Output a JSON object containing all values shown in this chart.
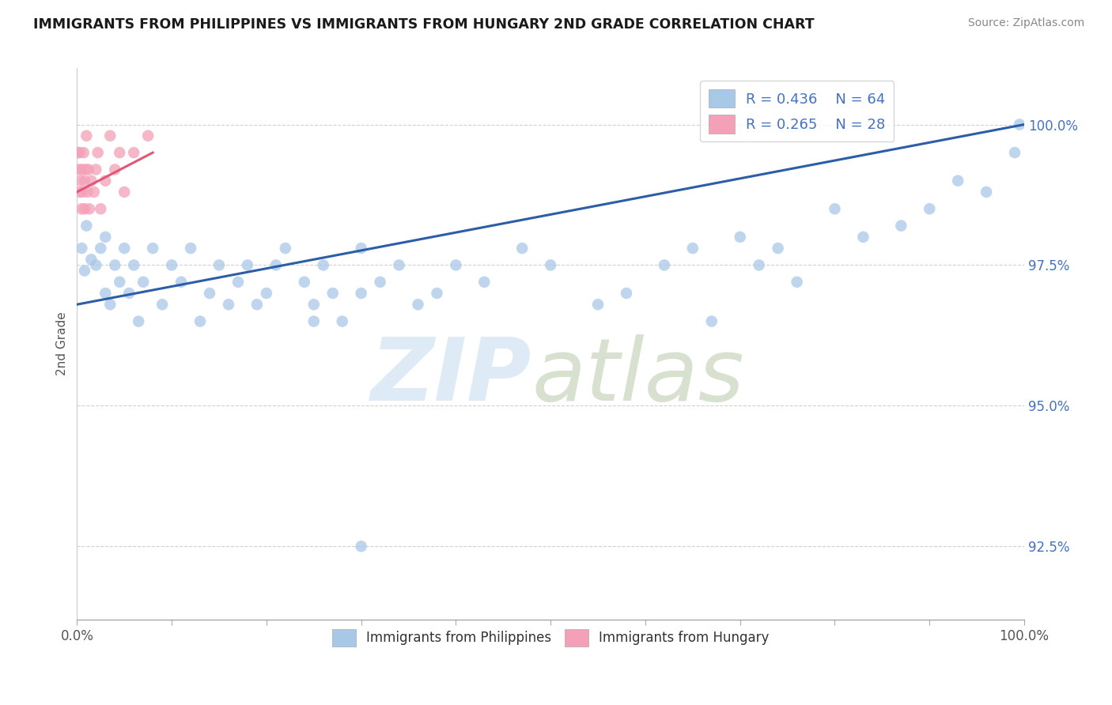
{
  "title": "IMMIGRANTS FROM PHILIPPINES VS IMMIGRANTS FROM HUNGARY 2ND GRADE CORRELATION CHART",
  "source": "Source: ZipAtlas.com",
  "ylabel": "2nd Grade",
  "yticks": [
    92.5,
    95.0,
    97.5,
    100.0
  ],
  "ytick_labels": [
    "92.5%",
    "95.0%",
    "97.5%",
    "100.0%"
  ],
  "xlim": [
    0.0,
    100.0
  ],
  "ylim": [
    91.2,
    101.0
  ],
  "legend_blue_label": "R = 0.436    N = 64",
  "legend_pink_label": "R = 0.265    N = 28",
  "blue_color": "#A8C8E8",
  "pink_color": "#F4A0B8",
  "blue_line_color": "#2B5EA7",
  "pink_line_color": "#E05878",
  "phil_x": [
    0.5,
    0.8,
    1.0,
    1.5,
    2.0,
    2.5,
    3.0,
    3.0,
    3.5,
    4.0,
    4.5,
    5.0,
    5.5,
    6.0,
    6.5,
    7.0,
    8.0,
    9.0,
    10.0,
    11.0,
    12.0,
    13.0,
    14.0,
    15.0,
    16.0,
    17.0,
    18.0,
    19.0,
    20.0,
    21.0,
    22.0,
    24.0,
    25.0,
    26.0,
    27.0,
    28.0,
    30.0,
    30.0,
    32.0,
    34.0,
    36.0,
    38.0,
    40.0,
    43.0,
    25.0,
    47.0,
    50.0,
    55.0,
    58.0,
    62.0,
    65.0,
    67.0,
    70.0,
    72.0,
    74.0,
    76.0,
    80.0,
    83.0,
    87.0,
    90.0,
    93.0,
    96.0,
    99.0,
    99.5
  ],
  "phil_y": [
    97.8,
    97.4,
    98.2,
    97.6,
    97.5,
    97.8,
    97.0,
    98.0,
    96.8,
    97.5,
    97.2,
    97.8,
    97.0,
    97.5,
    96.5,
    97.2,
    97.8,
    96.8,
    97.5,
    97.2,
    97.8,
    96.5,
    97.0,
    97.5,
    96.8,
    97.2,
    97.5,
    96.8,
    97.0,
    97.5,
    97.8,
    97.2,
    96.8,
    97.5,
    97.0,
    96.5,
    97.8,
    97.0,
    97.2,
    97.5,
    96.8,
    97.0,
    97.5,
    97.2,
    96.5,
    97.8,
    97.5,
    96.8,
    97.0,
    97.5,
    97.8,
    96.5,
    98.0,
    97.5,
    97.8,
    97.2,
    98.5,
    98.0,
    98.2,
    98.5,
    99.0,
    98.8,
    99.5,
    100.0
  ],
  "hung_x": [
    0.1,
    0.2,
    0.3,
    0.3,
    0.4,
    0.5,
    0.5,
    0.6,
    0.7,
    0.8,
    0.8,
    0.9,
    1.0,
    1.1,
    1.2,
    1.3,
    1.5,
    1.8,
    2.0,
    2.2,
    2.5,
    3.0,
    3.5,
    4.0,
    4.5,
    5.0,
    6.0,
    7.5
  ],
  "hung_y": [
    99.5,
    99.2,
    98.8,
    99.5,
    99.0,
    98.5,
    99.2,
    98.8,
    99.5,
    99.0,
    98.5,
    99.2,
    99.8,
    98.8,
    99.2,
    98.5,
    99.0,
    98.8,
    99.2,
    99.5,
    98.5,
    99.0,
    99.8,
    99.2,
    99.5,
    98.8,
    99.5,
    99.8
  ],
  "blue_trendline_x": [
    0.0,
    100.0
  ],
  "blue_trendline_y": [
    96.8,
    100.0
  ],
  "pink_trendline_x": [
    0.0,
    8.0
  ],
  "pink_trendline_y": [
    98.8,
    99.5
  ]
}
